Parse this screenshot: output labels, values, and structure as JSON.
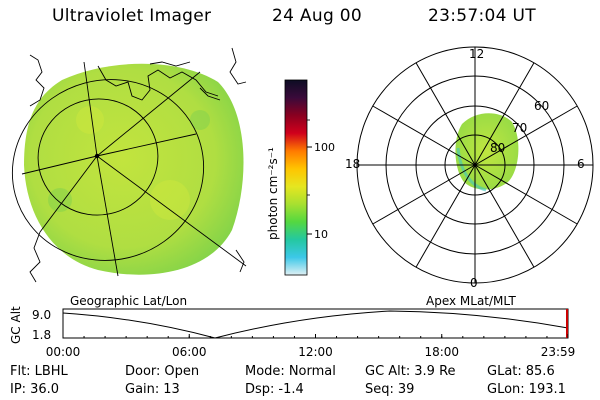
{
  "header": {
    "title": "Ultraviolet Imager",
    "date": "24 Aug 00",
    "time": "23:57:04 UT"
  },
  "colorbar": {
    "label": "photon cm⁻²s⁻¹",
    "ticks": [
      "100",
      "10"
    ],
    "stops": [
      "#0d0d24",
      "#3a0a3a",
      "#8a0020",
      "#d0001c",
      "#ff7a00",
      "#ffc400",
      "#e6e620",
      "#a8e030",
      "#54d840",
      "#24c8a0",
      "#3cc8e8",
      "#dff0f4"
    ]
  },
  "polar_plot": {
    "labels": {
      "top": "12",
      "left": "18",
      "right": "6",
      "bottom": "0",
      "lat60": "60",
      "lat70": "70",
      "lat80": "80"
    }
  },
  "captions": {
    "left": "Geographic Lat/Lon",
    "right": "Apex MLat/MLT"
  },
  "timeline": {
    "ylabel": "GC Alt",
    "yticks": [
      "9.0",
      "1.8"
    ],
    "xticks": [
      "00:00",
      "06:00",
      "12:00",
      "18:00",
      "23:59"
    ]
  },
  "status": [
    [
      {
        "k": "Flt:",
        "v": "LBHL"
      },
      {
        "k": "Door:",
        "v": "Open"
      },
      {
        "k": "Mode:",
        "v": "Normal"
      },
      {
        "k": "GC Alt:",
        "v": "3.9 Re"
      },
      {
        "k": "GLat:",
        "v": "85.6"
      }
    ],
    [
      {
        "k": "IP:",
        "v": "36.0"
      },
      {
        "k": "Gain:",
        "v": "13"
      },
      {
        "k": "Dsp:",
        "v": "-1.4"
      },
      {
        "k": "Seq:",
        "v": "39"
      },
      {
        "k": "GLon:",
        "v": "193.1"
      }
    ]
  ],
  "colors": {
    "disk": "#b4e040",
    "disk_edge": "#7fd04a",
    "polar_blob": "#b0e448",
    "line": "#000000",
    "marker": "#cc0000"
  }
}
